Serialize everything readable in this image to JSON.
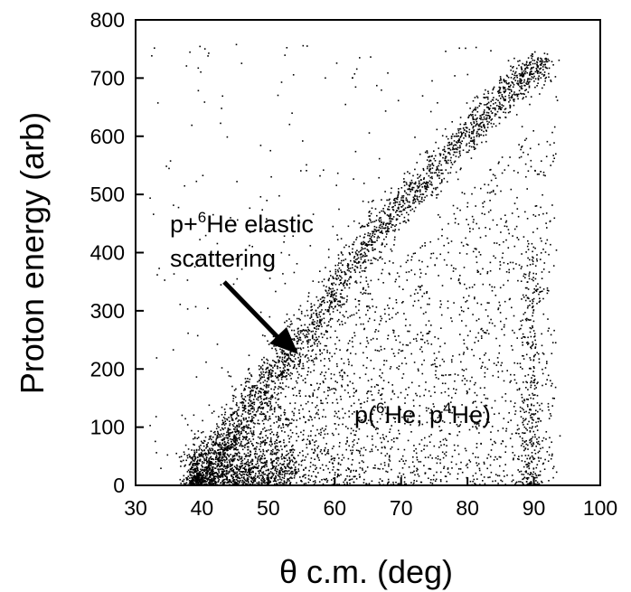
{
  "chart_data": {
    "type": "scatter",
    "title": "",
    "xlabel": "θ c.m. (deg)",
    "ylabel": "Proton energy (arb)",
    "xlim": [
      30,
      100
    ],
    "ylim": [
      0,
      800
    ],
    "xticks": [
      "30",
      "40",
      "50",
      "60",
      "70",
      "80",
      "90",
      "100"
    ],
    "yticks": [
      "0",
      "100",
      "200",
      "300",
      "400",
      "500",
      "600",
      "700",
      "800"
    ],
    "grid": false,
    "legend": "none",
    "marker_color": "#000000",
    "series": [
      {
        "description": "elastic scattering band (approximate centerline)",
        "x": [
          38,
          42,
          46,
          50,
          54,
          58,
          62,
          66,
          70,
          74,
          78,
          82,
          86,
          90
        ],
        "y": [
          10,
          60,
          120,
          180,
          240,
          300,
          370,
          430,
          490,
          530,
          580,
          630,
          680,
          720
        ]
      },
      {
        "description": "p(6He, p4He) continuum (approximate density region)",
        "x": [
          40,
          50,
          60,
          70,
          80,
          90
        ],
        "y": [
          50,
          60,
          80,
          120,
          200,
          300
        ]
      }
    ],
    "annotations": [
      {
        "text_main": "p+",
        "sup": "6",
        "text_rest": "He elastic",
        "line2": "scattering"
      },
      {
        "text_pre": "p(",
        "sup1": "6",
        "text_mid": "He, p",
        "sup2": "4",
        "text_end": "He)"
      }
    ]
  }
}
